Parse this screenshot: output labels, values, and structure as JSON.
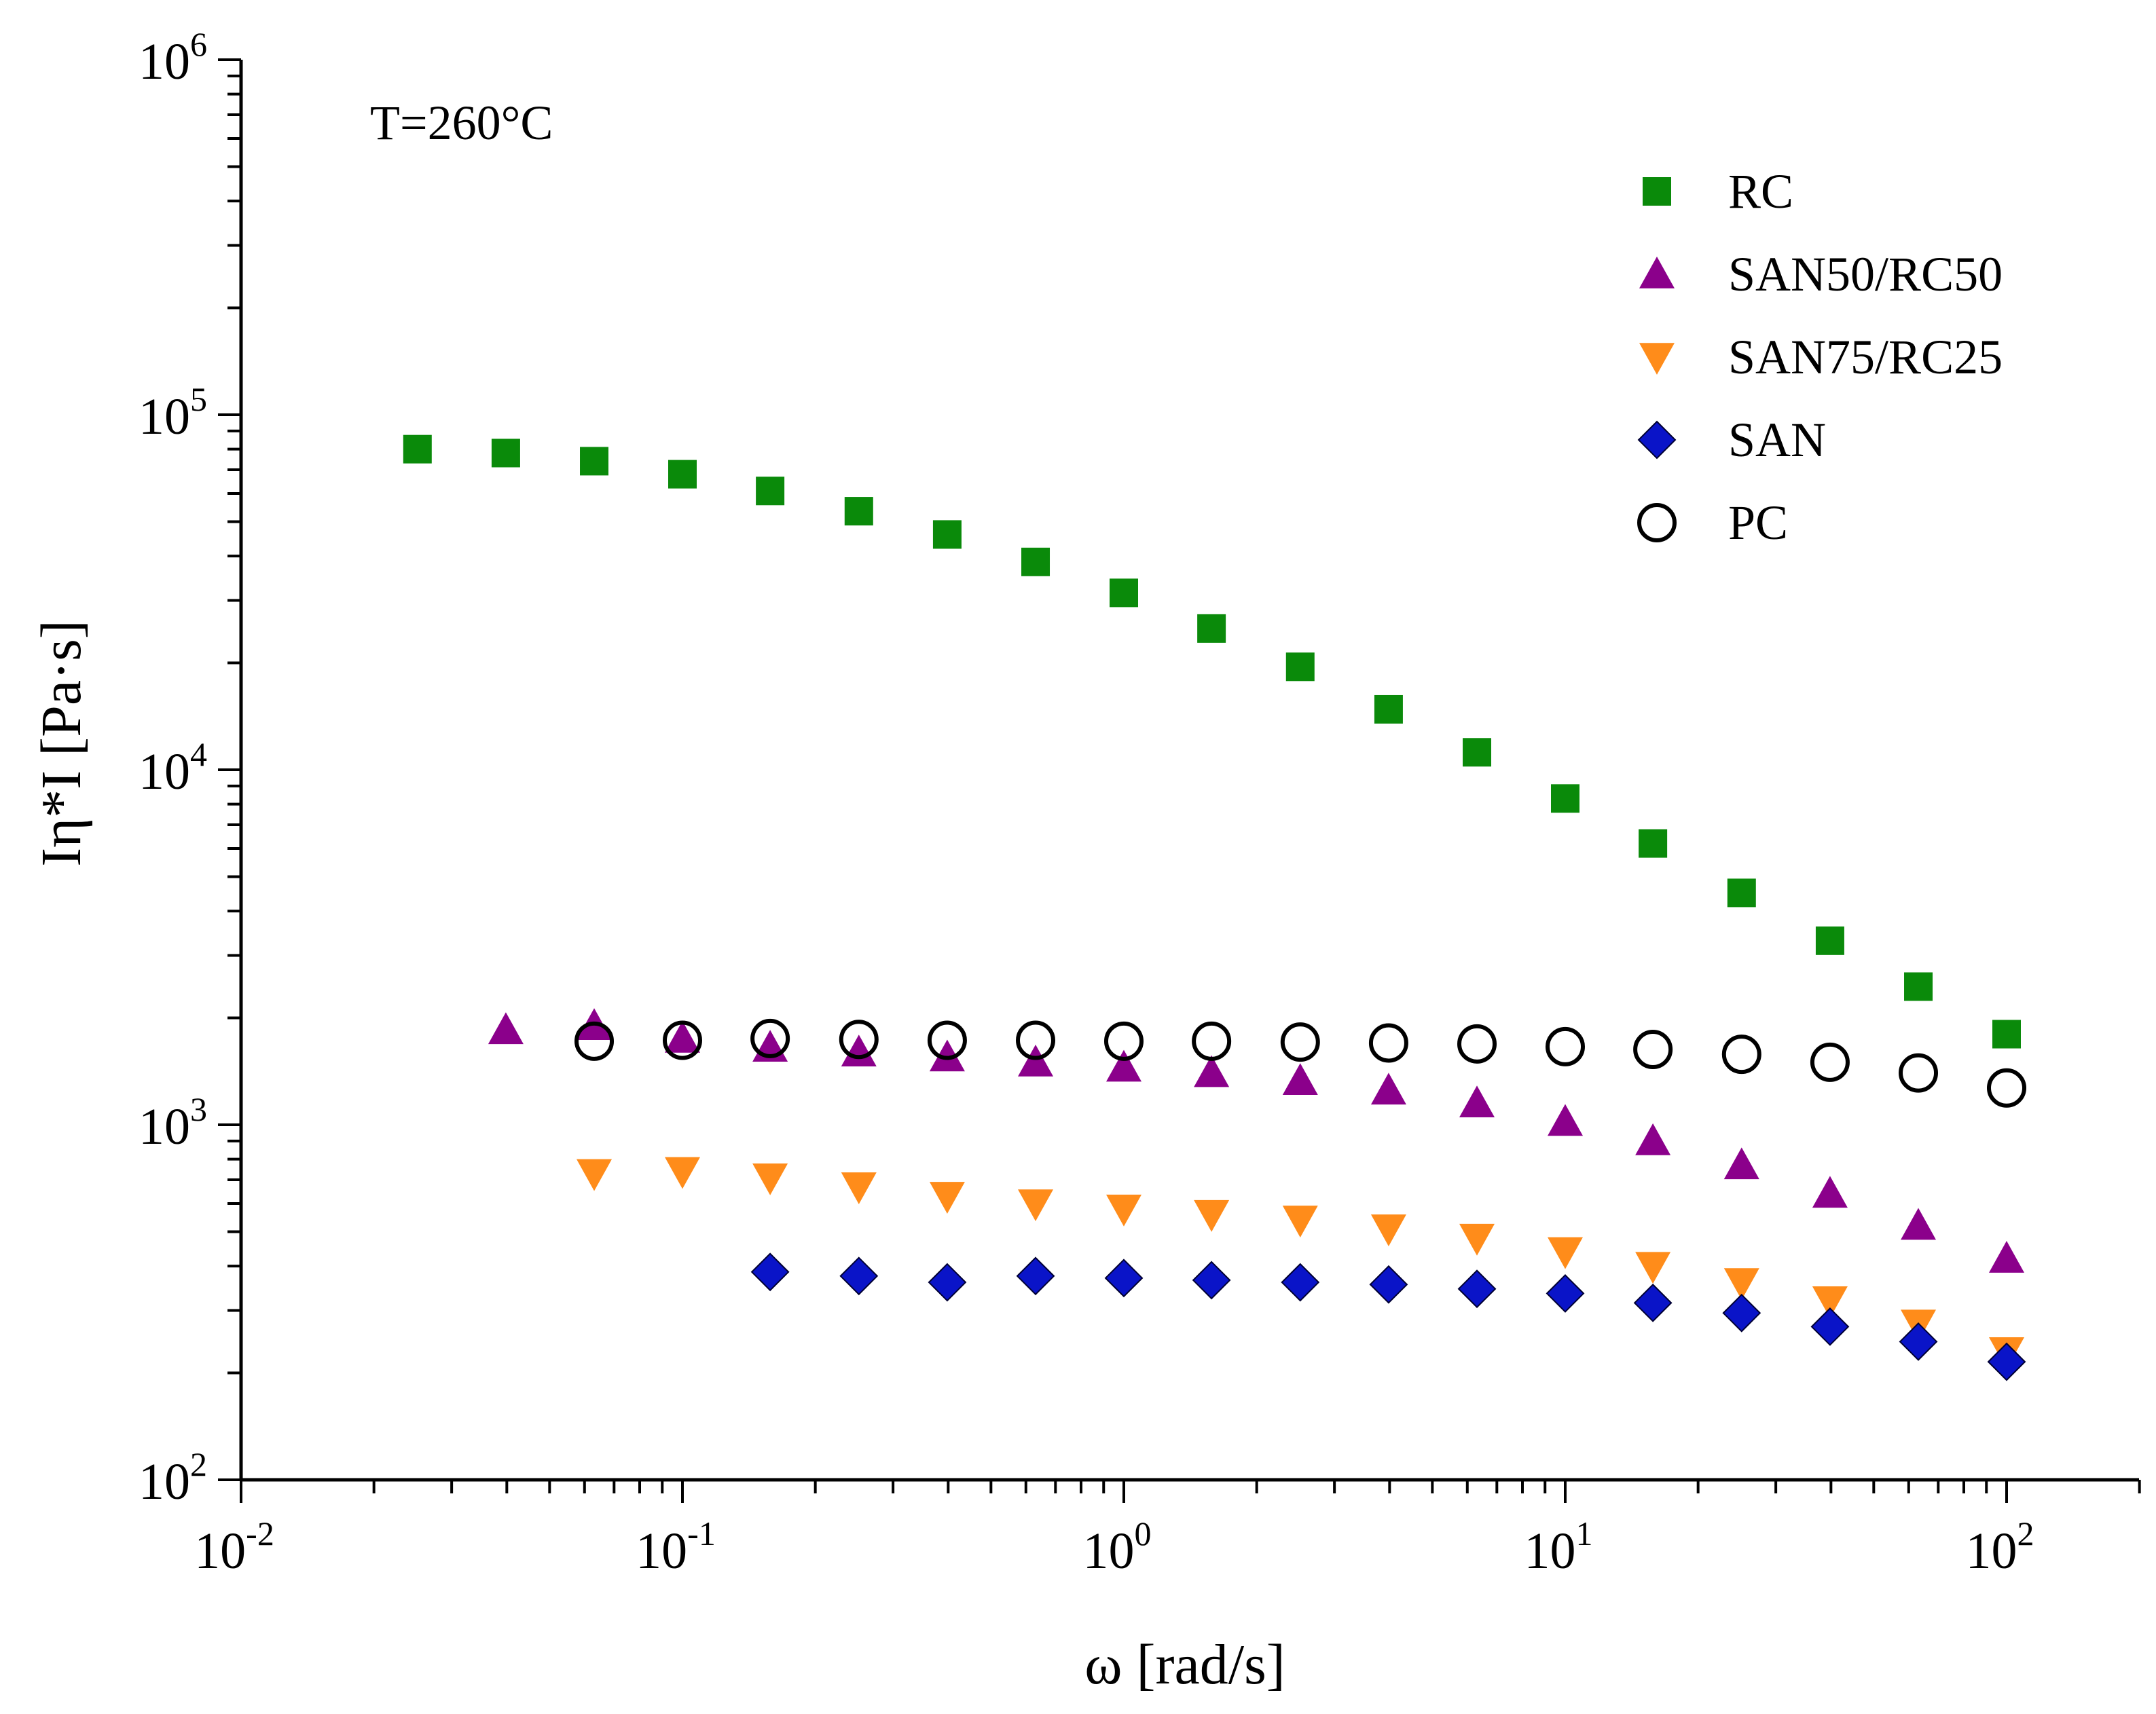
{
  "chart_data": {
    "type": "scatter",
    "xscale": "log",
    "yscale": "log",
    "xlabel": "ω [rad/s]",
    "ylabel": "Iη*I [Pa·s]",
    "xlim": [
      0.01,
      200
    ],
    "ylim": [
      100,
      1000000
    ],
    "annotation": "T=260°C",
    "legend_position": "top-right",
    "x_ticks": [
      {
        "base": "10",
        "exp": "-2"
      },
      {
        "base": "10",
        "exp": "-1"
      },
      {
        "base": "10",
        "exp": "0"
      },
      {
        "base": "10",
        "exp": "1"
      },
      {
        "base": "10",
        "exp": "2"
      }
    ],
    "y_ticks": [
      {
        "base": "10",
        "exp": "2"
      },
      {
        "base": "10",
        "exp": "3"
      },
      {
        "base": "10",
        "exp": "4"
      },
      {
        "base": "10",
        "exp": "5"
      },
      {
        "base": "10",
        "exp": "6"
      }
    ],
    "series": [
      {
        "name": "RC",
        "marker": "square",
        "color": "#0a8a0a",
        "x": [
          0.0251,
          0.0398,
          0.0631,
          0.1,
          0.158,
          0.251,
          0.398,
          0.631,
          1,
          1.58,
          2.51,
          3.98,
          6.31,
          10,
          15.8,
          25.1,
          39.8,
          63.1,
          100
        ],
        "y": [
          80000,
          78000,
          74000,
          68000,
          61000,
          53500,
          46000,
          38500,
          31500,
          25000,
          19500,
          14800,
          11200,
          8300,
          6200,
          4500,
          3300,
          2450,
          1800
        ]
      },
      {
        "name": "SAN50/RC50",
        "marker": "triangle-up",
        "color": "#8b008b",
        "x": [
          0.0398,
          0.0631,
          0.1,
          0.158,
          0.251,
          0.398,
          0.631,
          1,
          1.58,
          2.51,
          3.98,
          6.31,
          10,
          15.8,
          25.1,
          39.8,
          63.1,
          100
        ],
        "y": [
          1850,
          1900,
          1750,
          1650,
          1600,
          1550,
          1500,
          1450,
          1400,
          1330,
          1250,
          1150,
          1020,
          900,
          770,
          640,
          520,
          420
        ]
      },
      {
        "name": "SAN75/RC25",
        "marker": "triangle-down",
        "color": "#ff8c1a",
        "x": [
          0.0631,
          0.1,
          0.158,
          0.251,
          0.398,
          0.631,
          1,
          1.58,
          2.51,
          3.98,
          6.31,
          10,
          15.8,
          25.1,
          39.8,
          63.1,
          100
        ],
        "y": [
          730,
          740,
          710,
          670,
          630,
          600,
          580,
          560,
          540,
          510,
          480,
          440,
          400,
          360,
          320,
          275,
          230
        ]
      },
      {
        "name": "SAN",
        "marker": "diamond",
        "color": "#0a14c8",
        "x": [
          0.158,
          0.251,
          0.398,
          0.631,
          1,
          1.58,
          2.51,
          3.98,
          6.31,
          10,
          15.8,
          25.1,
          39.8,
          63.1,
          100
        ],
        "y": [
          385,
          375,
          360,
          375,
          370,
          365,
          360,
          355,
          345,
          335,
          315,
          295,
          270,
          245,
          215
        ]
      },
      {
        "name": "PC",
        "marker": "circle-open",
        "color": "#000000",
        "x": [
          0.0631,
          0.1,
          0.158,
          0.251,
          0.398,
          0.631,
          1,
          1.58,
          2.51,
          3.98,
          6.31,
          10,
          15.8,
          25.1,
          39.8,
          63.1,
          100
        ],
        "y": [
          1720,
          1730,
          1750,
          1740,
          1730,
          1730,
          1720,
          1720,
          1710,
          1700,
          1690,
          1660,
          1630,
          1580,
          1500,
          1400,
          1270
        ]
      }
    ]
  }
}
